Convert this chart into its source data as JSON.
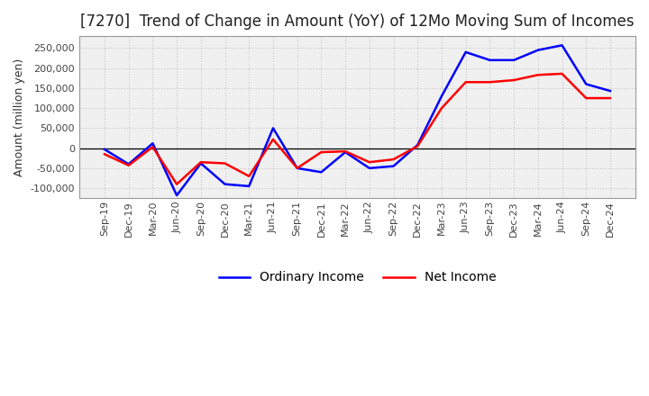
{
  "title": "[7270]  Trend of Change in Amount (YoY) of 12Mo Moving Sum of Incomes",
  "ylabel": "Amount (million yen)",
  "background_color": "#ffffff",
  "grid_color": "#bbbbbb",
  "plot_bg_color": "#f0f0f0",
  "x_labels": [
    "Sep-19",
    "Dec-19",
    "Mar-20",
    "Jun-20",
    "Sep-20",
    "Dec-20",
    "Mar-21",
    "Jun-21",
    "Sep-21",
    "Dec-21",
    "Mar-22",
    "Jun-22",
    "Sep-22",
    "Dec-22",
    "Mar-23",
    "Jun-23",
    "Sep-23",
    "Dec-23",
    "Mar-24",
    "Jun-24",
    "Sep-24",
    "Dec-24"
  ],
  "ordinary_income": [
    -3000,
    -40000,
    12000,
    -118000,
    -38000,
    -90000,
    -95000,
    50000,
    -50000,
    -60000,
    -10000,
    -50000,
    -45000,
    8000,
    130000,
    240000,
    220000,
    220000,
    245000,
    257000,
    160000,
    143000
  ],
  "net_income": [
    -15000,
    -43000,
    3000,
    -90000,
    -35000,
    -38000,
    -70000,
    22000,
    -50000,
    -10000,
    -8000,
    -35000,
    -28000,
    5000,
    100000,
    165000,
    165000,
    170000,
    183000,
    186000,
    125000,
    125000
  ],
  "ordinary_color": "#0000ff",
  "net_color": "#ff0000",
  "line_width": 1.8,
  "ylim": [
    -125000,
    280000
  ],
  "yticks": [
    -100000,
    -50000,
    0,
    50000,
    100000,
    150000,
    200000,
    250000
  ],
  "legend_labels": [
    "Ordinary Income",
    "Net Income"
  ],
  "title_fontsize": 12,
  "axis_fontsize": 9,
  "tick_fontsize": 8
}
